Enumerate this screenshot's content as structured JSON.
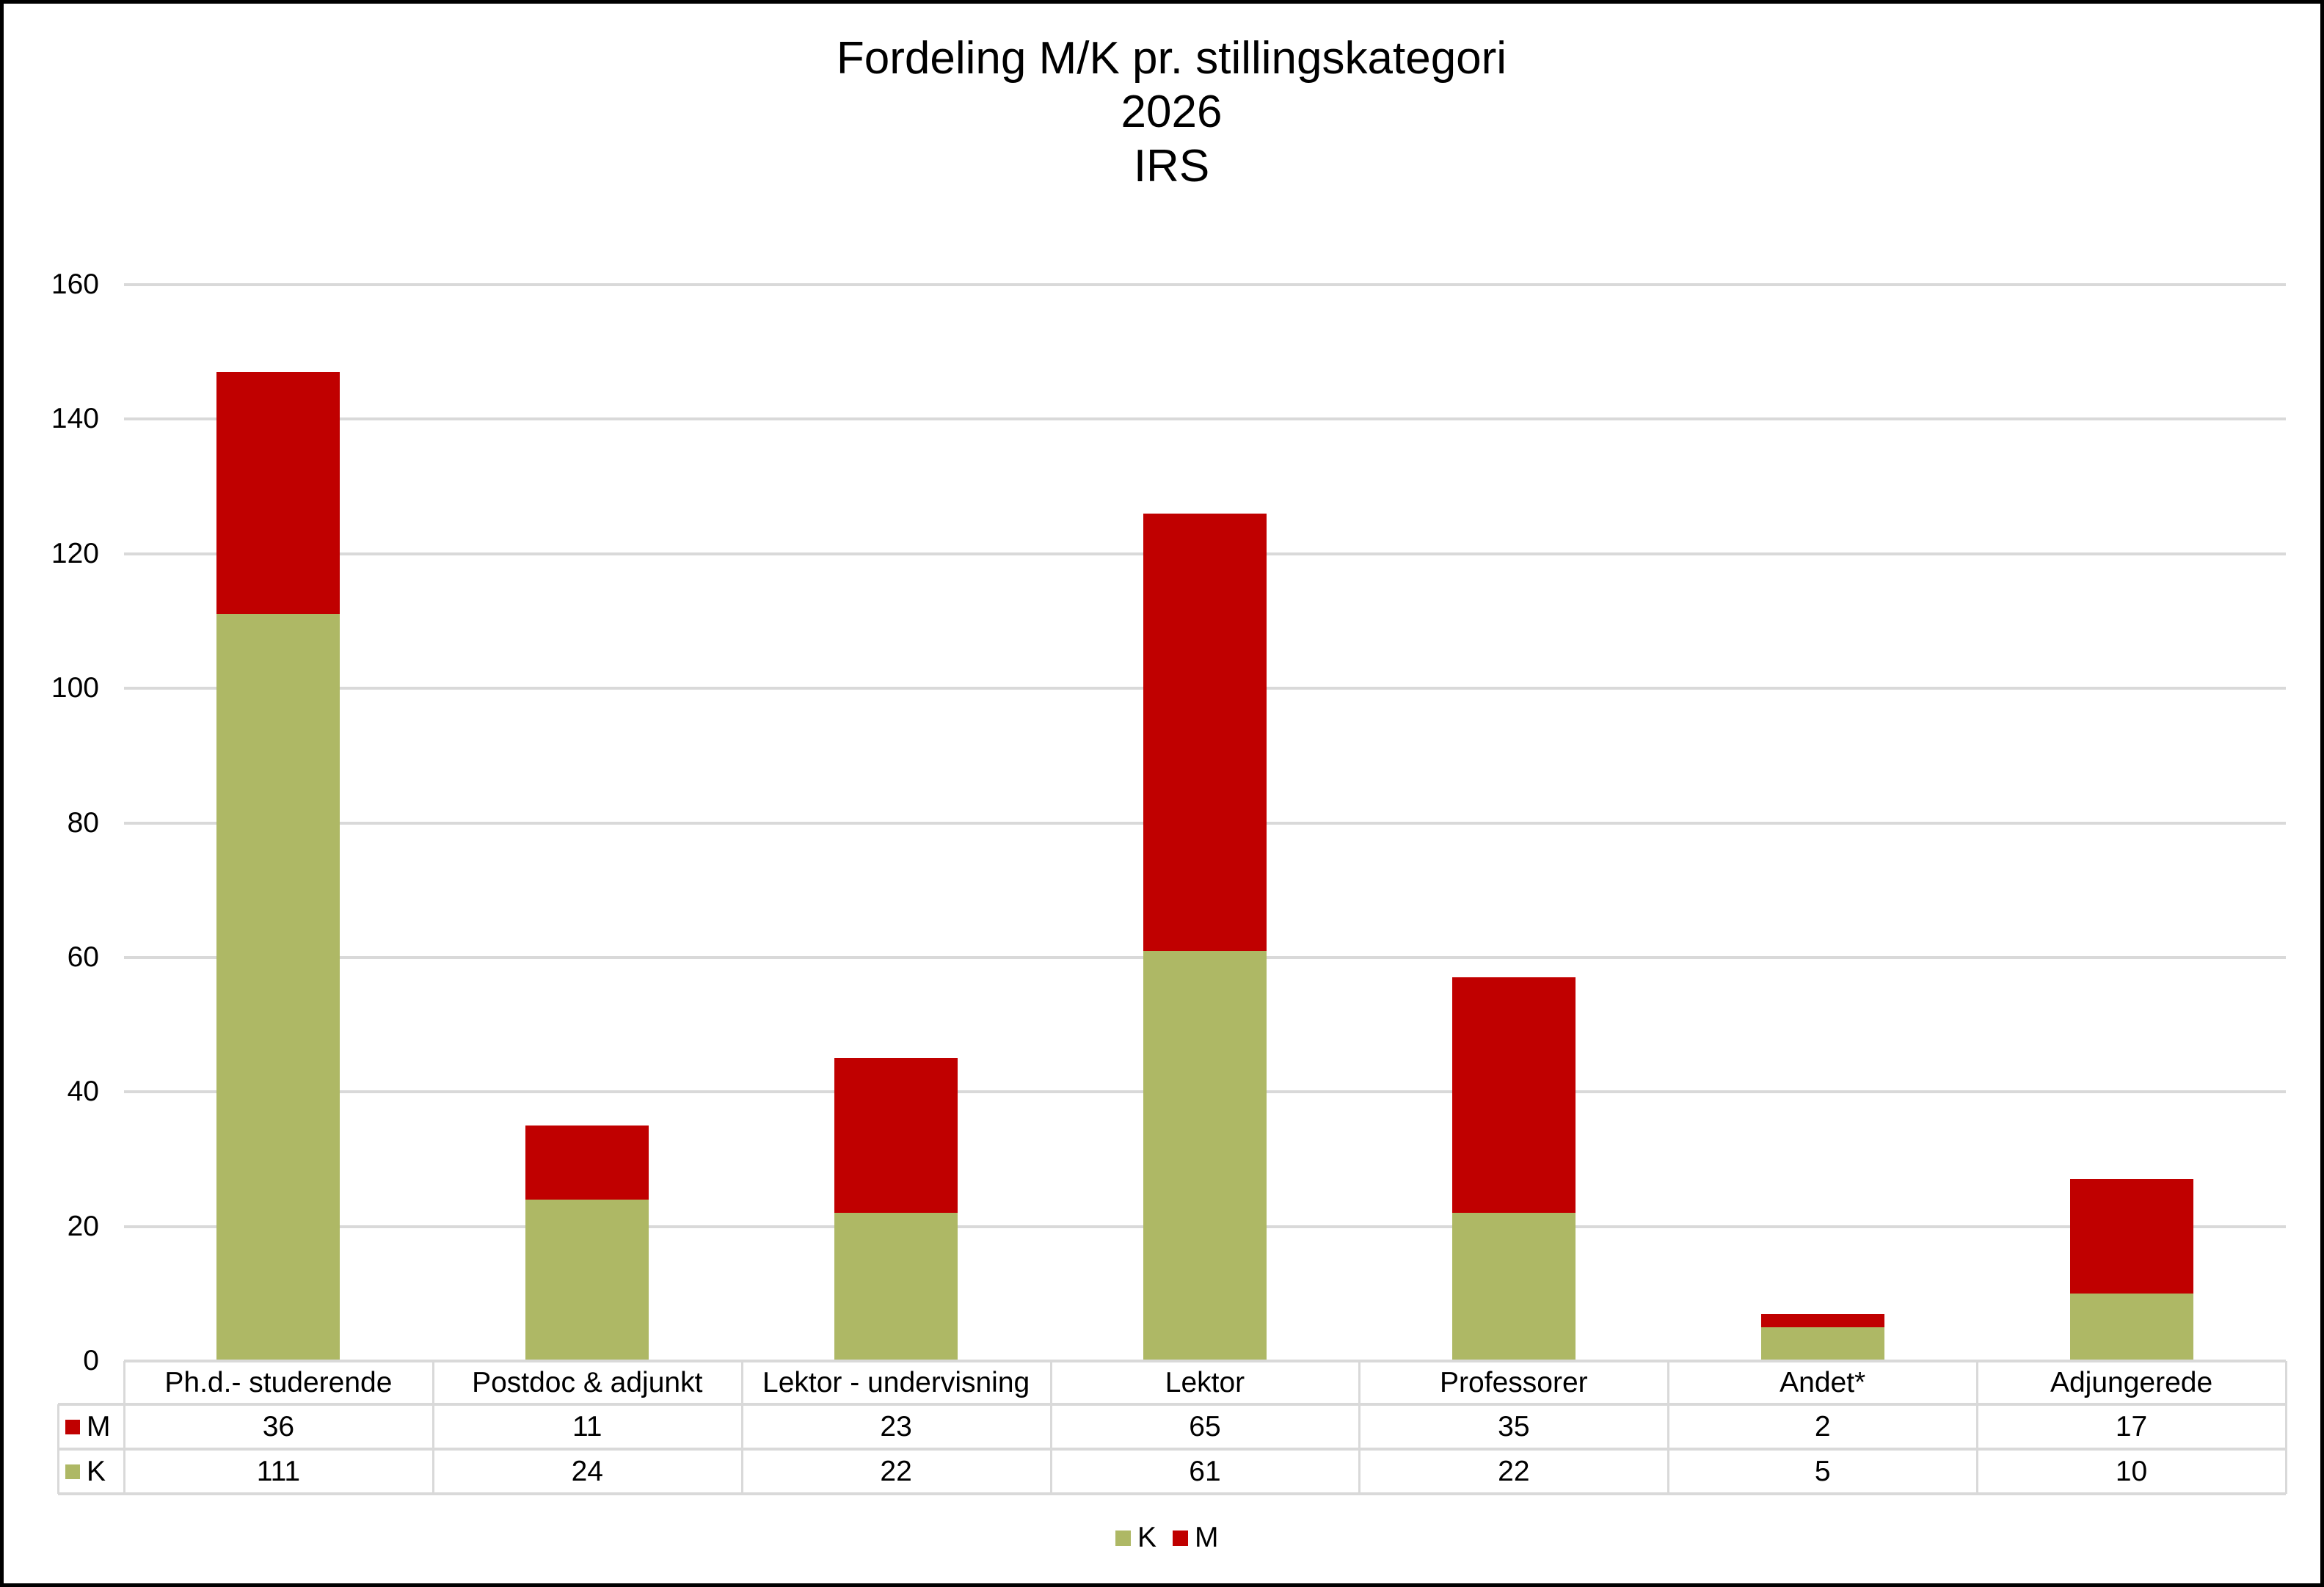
{
  "chart_data": {
    "type": "bar",
    "stacked": true,
    "title": "Fordeling M/K pr. stillingskategori",
    "subtitle": [
      "2026",
      "IRS"
    ],
    "title_lines": [
      "Fordeling M/K pr. stillingskategori",
      "2026",
      "IRS"
    ],
    "categories": [
      "Ph.d.- studerende",
      "Postdoc & adjunkt",
      "Lektor - undervisning",
      "Lektor",
      "Professorer",
      "Andet*",
      "Adjungerede"
    ],
    "series": [
      {
        "name": "K",
        "color": "#AEB865",
        "values": [
          111,
          24,
          22,
          61,
          22,
          5,
          10
        ]
      },
      {
        "name": "M",
        "color": "#C00000",
        "values": [
          36,
          11,
          23,
          65,
          35,
          2,
          17
        ]
      }
    ],
    "totals": [
      147,
      35,
      45,
      126,
      57,
      7,
      27
    ],
    "xlabel": "",
    "ylabel": "",
    "ylim": [
      0,
      160
    ],
    "yticks": [
      0,
      20,
      40,
      60,
      80,
      100,
      120,
      140,
      160
    ],
    "grid": true,
    "legend": {
      "position": "bottom",
      "entries": [
        "K",
        "M"
      ]
    },
    "data_table": {
      "rows": [
        {
          "label": "M",
          "color": "#C00000",
          "values": [
            36,
            11,
            23,
            65,
            35,
            2,
            17
          ]
        },
        {
          "label": "K",
          "color": "#AEB865",
          "values": [
            111,
            24,
            22,
            61,
            22,
            5,
            10
          ]
        }
      ]
    }
  },
  "colors": {
    "K": "#AEB865",
    "M": "#C00000",
    "grid": "#D9D9D9",
    "frame": "#000000"
  }
}
